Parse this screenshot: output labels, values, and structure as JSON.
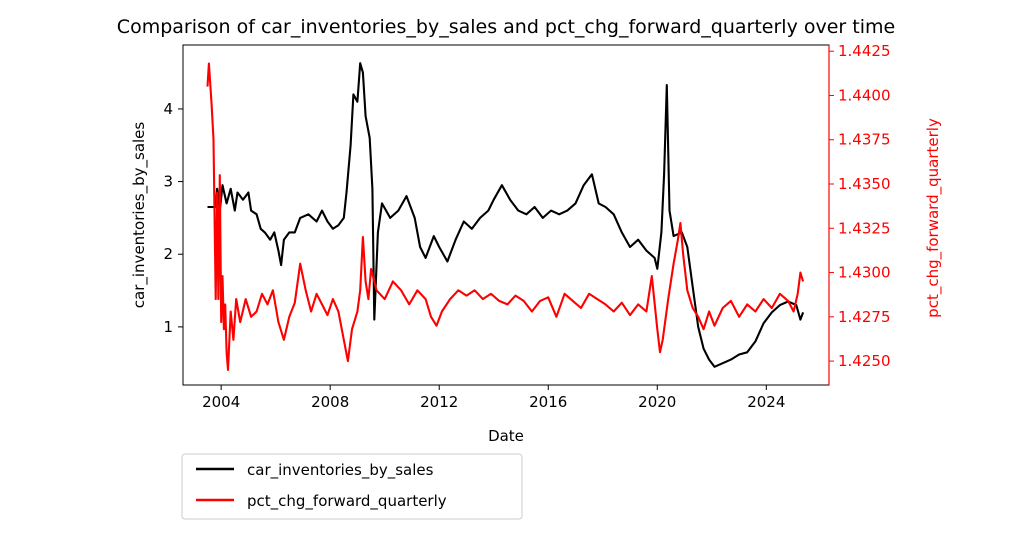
{
  "chart_data": {
    "type": "line",
    "title": "Comparison of car_inventories_by_sales and pct_chg_forward_quarterly over time",
    "xlabel": "Date",
    "ylabel_left": "car_inventories_by_sales",
    "ylabel_right": "pct_chg_forward_quarterly",
    "x_ticks": [
      "2004",
      "2008",
      "2012",
      "2016",
      "2020",
      "2024"
    ],
    "y_left_ticks": [
      "1",
      "2",
      "3",
      "4"
    ],
    "y_right_ticks": [
      "1.4250",
      "1.4275",
      "1.4300",
      "1.4325",
      "1.4350",
      "1.4375",
      "1.4400",
      "1.4425"
    ],
    "xlim": [
      2002.6,
      2026.3
    ],
    "ylim_left": [
      0.2,
      4.88
    ],
    "ylim_right": [
      1.42365,
      1.44285
    ],
    "colors": {
      "left_series": "#000000",
      "right_series": "#ff0000",
      "right_axis": "#ff0000"
    },
    "legend_placement": "below-left",
    "grid": false,
    "series": [
      {
        "name": "car_inventories_by_sales",
        "axis": "left",
        "color": "#000000",
        "points": [
          [
            2003.5,
            2.65
          ],
          [
            2003.8,
            2.65
          ],
          [
            2003.85,
            2.9
          ],
          [
            2003.95,
            2.6
          ],
          [
            2004.05,
            2.95
          ],
          [
            2004.2,
            2.7
          ],
          [
            2004.35,
            2.9
          ],
          [
            2004.5,
            2.6
          ],
          [
            2004.6,
            2.85
          ],
          [
            2004.8,
            2.75
          ],
          [
            2005.0,
            2.85
          ],
          [
            2005.1,
            2.6
          ],
          [
            2005.3,
            2.55
          ],
          [
            2005.45,
            2.35
          ],
          [
            2005.6,
            2.3
          ],
          [
            2005.8,
            2.2
          ],
          [
            2005.95,
            2.3
          ],
          [
            2006.1,
            2.05
          ],
          [
            2006.2,
            1.85
          ],
          [
            2006.3,
            2.2
          ],
          [
            2006.5,
            2.3
          ],
          [
            2006.7,
            2.3
          ],
          [
            2006.9,
            2.5
          ],
          [
            2007.2,
            2.55
          ],
          [
            2007.5,
            2.45
          ],
          [
            2007.7,
            2.6
          ],
          [
            2007.9,
            2.45
          ],
          [
            2008.1,
            2.35
          ],
          [
            2008.3,
            2.4
          ],
          [
            2008.5,
            2.5
          ],
          [
            2008.6,
            2.85
          ],
          [
            2008.75,
            3.5
          ],
          [
            2008.85,
            4.2
          ],
          [
            2009.0,
            4.1
          ],
          [
            2009.1,
            4.63
          ],
          [
            2009.2,
            4.5
          ],
          [
            2009.3,
            3.9
          ],
          [
            2009.45,
            3.6
          ],
          [
            2009.55,
            2.9
          ],
          [
            2009.62,
            1.1
          ],
          [
            2009.75,
            2.3
          ],
          [
            2009.9,
            2.7
          ],
          [
            2010.2,
            2.5
          ],
          [
            2010.5,
            2.6
          ],
          [
            2010.8,
            2.8
          ],
          [
            2011.1,
            2.5
          ],
          [
            2011.3,
            2.1
          ],
          [
            2011.5,
            1.95
          ],
          [
            2011.8,
            2.25
          ],
          [
            2012.0,
            2.1
          ],
          [
            2012.3,
            1.9
          ],
          [
            2012.6,
            2.2
          ],
          [
            2012.9,
            2.45
          ],
          [
            2013.2,
            2.35
          ],
          [
            2013.5,
            2.5
          ],
          [
            2013.8,
            2.6
          ],
          [
            2014.0,
            2.75
          ],
          [
            2014.3,
            2.95
          ],
          [
            2014.6,
            2.75
          ],
          [
            2014.9,
            2.6
          ],
          [
            2015.2,
            2.55
          ],
          [
            2015.5,
            2.65
          ],
          [
            2015.8,
            2.5
          ],
          [
            2016.1,
            2.6
          ],
          [
            2016.4,
            2.55
          ],
          [
            2016.7,
            2.6
          ],
          [
            2017.0,
            2.7
          ],
          [
            2017.3,
            2.95
          ],
          [
            2017.6,
            3.1
          ],
          [
            2017.85,
            2.7
          ],
          [
            2018.1,
            2.65
          ],
          [
            2018.4,
            2.55
          ],
          [
            2018.7,
            2.3
          ],
          [
            2019.0,
            2.1
          ],
          [
            2019.3,
            2.2
          ],
          [
            2019.6,
            2.05
          ],
          [
            2019.9,
            1.95
          ],
          [
            2020.0,
            1.8
          ],
          [
            2020.15,
            2.3
          ],
          [
            2020.25,
            3.1
          ],
          [
            2020.35,
            4.33
          ],
          [
            2020.45,
            2.6
          ],
          [
            2020.6,
            2.25
          ],
          [
            2020.9,
            2.3
          ],
          [
            2021.1,
            2.1
          ],
          [
            2021.3,
            1.55
          ],
          [
            2021.5,
            1.0
          ],
          [
            2021.7,
            0.7
          ],
          [
            2021.9,
            0.55
          ],
          [
            2022.1,
            0.45
          ],
          [
            2022.4,
            0.5
          ],
          [
            2022.7,
            0.55
          ],
          [
            2023.0,
            0.62
          ],
          [
            2023.3,
            0.65
          ],
          [
            2023.6,
            0.8
          ],
          [
            2023.9,
            1.05
          ],
          [
            2024.2,
            1.2
          ],
          [
            2024.5,
            1.3
          ],
          [
            2024.8,
            1.35
          ],
          [
            2025.1,
            1.3
          ],
          [
            2025.25,
            1.1
          ],
          [
            2025.35,
            1.2
          ]
        ]
      },
      {
        "name": "pct_chg_forward_quarterly",
        "axis": "right",
        "color": "#ff0000",
        "points": [
          [
            2003.5,
            1.4405
          ],
          [
            2003.55,
            1.4418
          ],
          [
            2003.65,
            1.4395
          ],
          [
            2003.72,
            1.4375
          ],
          [
            2003.8,
            1.4285
          ],
          [
            2003.85,
            1.4345
          ],
          [
            2003.9,
            1.4285
          ],
          [
            2003.95,
            1.4355
          ],
          [
            2004.0,
            1.4272
          ],
          [
            2004.05,
            1.4298
          ],
          [
            2004.1,
            1.4268
          ],
          [
            2004.15,
            1.4282
          ],
          [
            2004.2,
            1.4255
          ],
          [
            2004.25,
            1.4245
          ],
          [
            2004.35,
            1.4278
          ],
          [
            2004.45,
            1.4262
          ],
          [
            2004.55,
            1.4285
          ],
          [
            2004.7,
            1.4272
          ],
          [
            2004.9,
            1.4285
          ],
          [
            2005.1,
            1.4275
          ],
          [
            2005.3,
            1.4278
          ],
          [
            2005.5,
            1.4288
          ],
          [
            2005.7,
            1.4282
          ],
          [
            2005.9,
            1.429
          ],
          [
            2006.1,
            1.4272
          ],
          [
            2006.3,
            1.4262
          ],
          [
            2006.5,
            1.4275
          ],
          [
            2006.7,
            1.4283
          ],
          [
            2006.9,
            1.4305
          ],
          [
            2007.1,
            1.429
          ],
          [
            2007.3,
            1.4278
          ],
          [
            2007.5,
            1.4288
          ],
          [
            2007.7,
            1.4282
          ],
          [
            2007.9,
            1.4276
          ],
          [
            2008.1,
            1.4285
          ],
          [
            2008.3,
            1.4278
          ],
          [
            2008.5,
            1.4262
          ],
          [
            2008.65,
            1.425
          ],
          [
            2008.8,
            1.4268
          ],
          [
            2009.0,
            1.4278
          ],
          [
            2009.1,
            1.429
          ],
          [
            2009.2,
            1.432
          ],
          [
            2009.3,
            1.4295
          ],
          [
            2009.4,
            1.4285
          ],
          [
            2009.5,
            1.4302
          ],
          [
            2009.7,
            1.429
          ],
          [
            2010.0,
            1.4285
          ],
          [
            2010.3,
            1.4295
          ],
          [
            2010.6,
            1.429
          ],
          [
            2010.9,
            1.4282
          ],
          [
            2011.2,
            1.429
          ],
          [
            2011.5,
            1.4285
          ],
          [
            2011.7,
            1.4275
          ],
          [
            2011.9,
            1.427
          ],
          [
            2012.1,
            1.4278
          ],
          [
            2012.4,
            1.4285
          ],
          [
            2012.7,
            1.429
          ],
          [
            2013.0,
            1.4287
          ],
          [
            2013.3,
            1.429
          ],
          [
            2013.6,
            1.4285
          ],
          [
            2013.9,
            1.4288
          ],
          [
            2014.2,
            1.4284
          ],
          [
            2014.5,
            1.4282
          ],
          [
            2014.8,
            1.4287
          ],
          [
            2015.1,
            1.4284
          ],
          [
            2015.4,
            1.4278
          ],
          [
            2015.7,
            1.4284
          ],
          [
            2016.0,
            1.4286
          ],
          [
            2016.3,
            1.4275
          ],
          [
            2016.6,
            1.4288
          ],
          [
            2016.9,
            1.4284
          ],
          [
            2017.2,
            1.428
          ],
          [
            2017.5,
            1.4288
          ],
          [
            2017.8,
            1.4285
          ],
          [
            2018.1,
            1.4282
          ],
          [
            2018.4,
            1.4278
          ],
          [
            2018.7,
            1.4283
          ],
          [
            2019.0,
            1.4276
          ],
          [
            2019.3,
            1.4282
          ],
          [
            2019.6,
            1.4278
          ],
          [
            2019.8,
            1.4298
          ],
          [
            2020.0,
            1.4268
          ],
          [
            2020.1,
            1.4255
          ],
          [
            2020.2,
            1.4262
          ],
          [
            2020.4,
            1.4285
          ],
          [
            2020.6,
            1.4305
          ],
          [
            2020.75,
            1.4318
          ],
          [
            2020.85,
            1.4328
          ],
          [
            2020.95,
            1.431
          ],
          [
            2021.1,
            1.429
          ],
          [
            2021.3,
            1.428
          ],
          [
            2021.5,
            1.4275
          ],
          [
            2021.7,
            1.4268
          ],
          [
            2021.9,
            1.4278
          ],
          [
            2022.1,
            1.427
          ],
          [
            2022.4,
            1.428
          ],
          [
            2022.7,
            1.4284
          ],
          [
            2023.0,
            1.4275
          ],
          [
            2023.3,
            1.4282
          ],
          [
            2023.6,
            1.4278
          ],
          [
            2023.9,
            1.4285
          ],
          [
            2024.2,
            1.428
          ],
          [
            2024.5,
            1.4288
          ],
          [
            2024.8,
            1.4284
          ],
          [
            2025.0,
            1.4278
          ],
          [
            2025.15,
            1.4288
          ],
          [
            2025.25,
            1.43
          ],
          [
            2025.35,
            1.4295
          ]
        ]
      }
    ]
  }
}
